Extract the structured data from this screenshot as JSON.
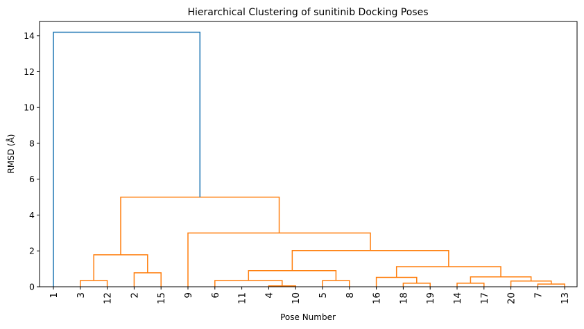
{
  "chart_data": {
    "type": "dendrogram",
    "title": "Hierarchical Clustering of sunitinib Docking Poses",
    "xlabel": "Pose Number",
    "ylabel": "RMSD (Å)",
    "ylim": [
      0,
      14.8
    ],
    "yticks": [
      0,
      2,
      4,
      6,
      8,
      10,
      12,
      14
    ],
    "leaf_order": [
      "1",
      "3",
      "12",
      "2",
      "15",
      "9",
      "6",
      "11",
      "4",
      "10",
      "5",
      "8",
      "16",
      "18",
      "19",
      "14",
      "17",
      "20",
      "7",
      "13"
    ],
    "colors": {
      "above_threshold": "#1f77b4",
      "cluster": "#ff7f0e"
    },
    "links": [
      {
        "left": 1,
        "right": 2,
        "height": 0.35,
        "color": "cluster"
      },
      {
        "left": 3,
        "right": 4,
        "height": 0.78,
        "color": "cluster"
      },
      {
        "left": 8,
        "right": 9,
        "height": 0.05,
        "color": "cluster"
      },
      {
        "left": 6,
        "right": 8.5,
        "height": 0.35,
        "color": "cluster"
      },
      {
        "left": 10,
        "right": 11,
        "height": 0.35,
        "color": "cluster"
      },
      {
        "left": 7.25,
        "right": 10.5,
        "height": 0.9,
        "color": "cluster"
      },
      {
        "left": 13,
        "right": 14,
        "height": 0.2,
        "color": "cluster"
      },
      {
        "left": 12,
        "right": 13.5,
        "height": 0.52,
        "color": "cluster"
      },
      {
        "left": 15,
        "right": 16,
        "height": 0.2,
        "color": "cluster"
      },
      {
        "left": 18,
        "right": 19,
        "height": 0.15,
        "color": "cluster"
      },
      {
        "left": 17,
        "right": 18.5,
        "height": 0.32,
        "color": "cluster"
      },
      {
        "left": 15.5,
        "right": 17.75,
        "height": 0.55,
        "color": "cluster"
      },
      {
        "left": 12.75,
        "right": 16.625,
        "height": 1.12,
        "color": "cluster"
      },
      {
        "left": 8.875,
        "right": 14.6875,
        "height": 2.02,
        "color": "cluster"
      },
      {
        "left": 5,
        "right": 11.78,
        "height": 3.0,
        "color": "cluster"
      },
      {
        "left": 1.5,
        "right": 3.5,
        "height": 1.78,
        "color": "cluster"
      },
      {
        "left": 2.5,
        "right": 8.39,
        "height": 5.0,
        "color": "cluster"
      },
      {
        "left": 0,
        "right": 5.445,
        "height": 14.2,
        "color": "above_threshold"
      }
    ]
  }
}
